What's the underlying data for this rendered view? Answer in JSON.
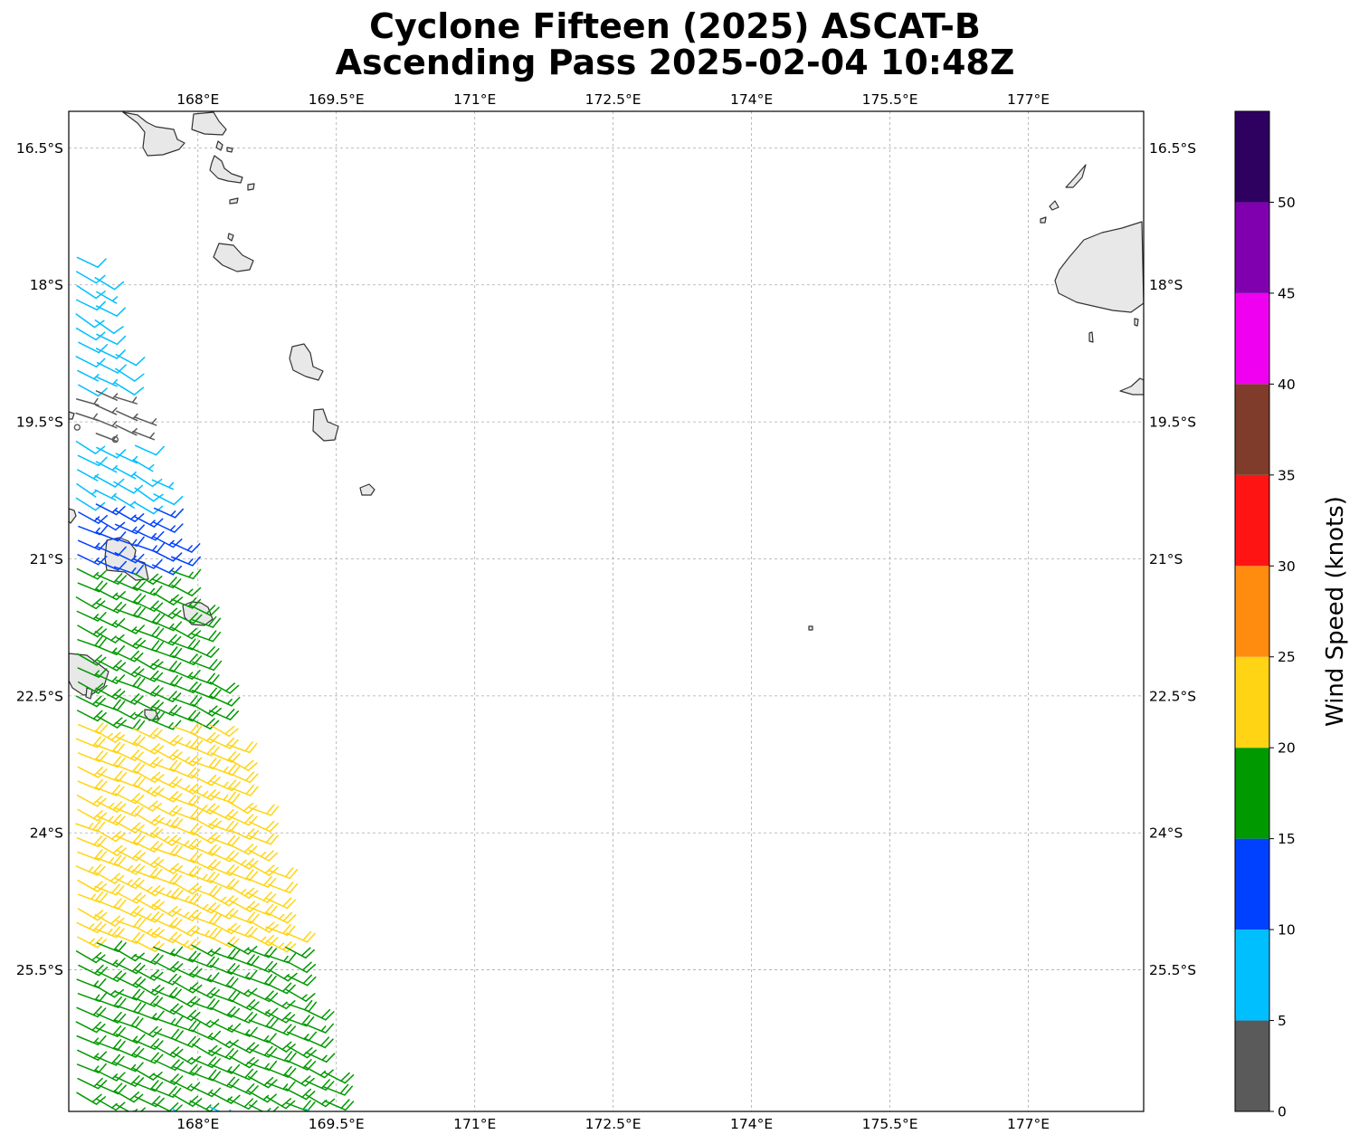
{
  "title_line1": "Cyclone Fifteen (2025) ASCAT-B",
  "title_line2": "Ascending Pass 2025-02-04 10:48Z",
  "map": {
    "lon_range": [
      166.6,
      178.25
    ],
    "lat_range": [
      -27.05,
      -16.1
    ],
    "lon_ticks": [
      {
        "value": 168,
        "label": "168°E"
      },
      {
        "value": 169.5,
        "label": "169.5°E"
      },
      {
        "value": 171,
        "label": "171°E"
      },
      {
        "value": 172.5,
        "label": "172.5°E"
      },
      {
        "value": 174,
        "label": "174°E"
      },
      {
        "value": 175.5,
        "label": "175.5°E"
      },
      {
        "value": 177,
        "label": "177°E"
      }
    ],
    "lat_ticks": [
      {
        "value": -16.5,
        "label": "16.5°S"
      },
      {
        "value": -18,
        "label": "18°S"
      },
      {
        "value": -19.5,
        "label": "19.5°S"
      },
      {
        "value": -21,
        "label": "21°S"
      },
      {
        "value": -22.5,
        "label": "22.5°S"
      },
      {
        "value": -24,
        "label": "24°S"
      },
      {
        "value": -25.5,
        "label": "25.5°S"
      }
    ],
    "grid": true,
    "land_color": "#e8e8e8",
    "coast_color": "#333333"
  },
  "colorbar": {
    "label": "Wind Speed (knots)",
    "bins": [
      {
        "min": 0,
        "max": 5,
        "color": "#5a5a5a"
      },
      {
        "min": 5,
        "max": 10,
        "color": "#00bfff"
      },
      {
        "min": 10,
        "max": 15,
        "color": "#0040ff"
      },
      {
        "min": 15,
        "max": 20,
        "color": "#009900"
      },
      {
        "min": 20,
        "max": 25,
        "color": "#ffd414"
      },
      {
        "min": 25,
        "max": 30,
        "color": "#ff8c0f"
      },
      {
        "min": 30,
        "max": 35,
        "color": "#ff1414"
      },
      {
        "min": 35,
        "max": 40,
        "color": "#803c2a"
      },
      {
        "min": 40,
        "max": 45,
        "color": "#f000f0"
      },
      {
        "min": 45,
        "max": 50,
        "color": "#8000b0"
      },
      {
        "min": 50,
        "max": 55,
        "color": "#2e0060"
      }
    ],
    "tick_labels": [
      "0",
      "5",
      "10",
      "15",
      "20",
      "25",
      "30",
      "35",
      "40",
      "45",
      "50"
    ]
  },
  "chart_data": {
    "type": "wind_barbs",
    "instrument": "ASCAT-B",
    "pass": "Ascending",
    "units": "knots",
    "swath_summary": [
      {
        "lat_range": [
          -17.7,
          -20.8
        ],
        "speed_knots": 8,
        "direction_from_deg": 120
      },
      {
        "lat_range": [
          -19.1,
          -19.7
        ],
        "speed_knots": 3,
        "direction_from_deg": 110
      },
      {
        "lat_range": [
          -20.4,
          -21.9
        ],
        "speed_knots": 13,
        "direction_from_deg": 115
      },
      {
        "lat_range": [
          -21.1,
          -23.3
        ],
        "speed_knots": 18,
        "direction_from_deg": 115
      },
      {
        "lat_range": [
          -22.8,
          -27.0
        ],
        "speed_knots": 22,
        "direction_from_deg": 115
      },
      {
        "lat_range": [
          -25.2,
          -27.0
        ],
        "speed_knots": 18,
        "direction_from_deg": 115
      }
    ]
  }
}
